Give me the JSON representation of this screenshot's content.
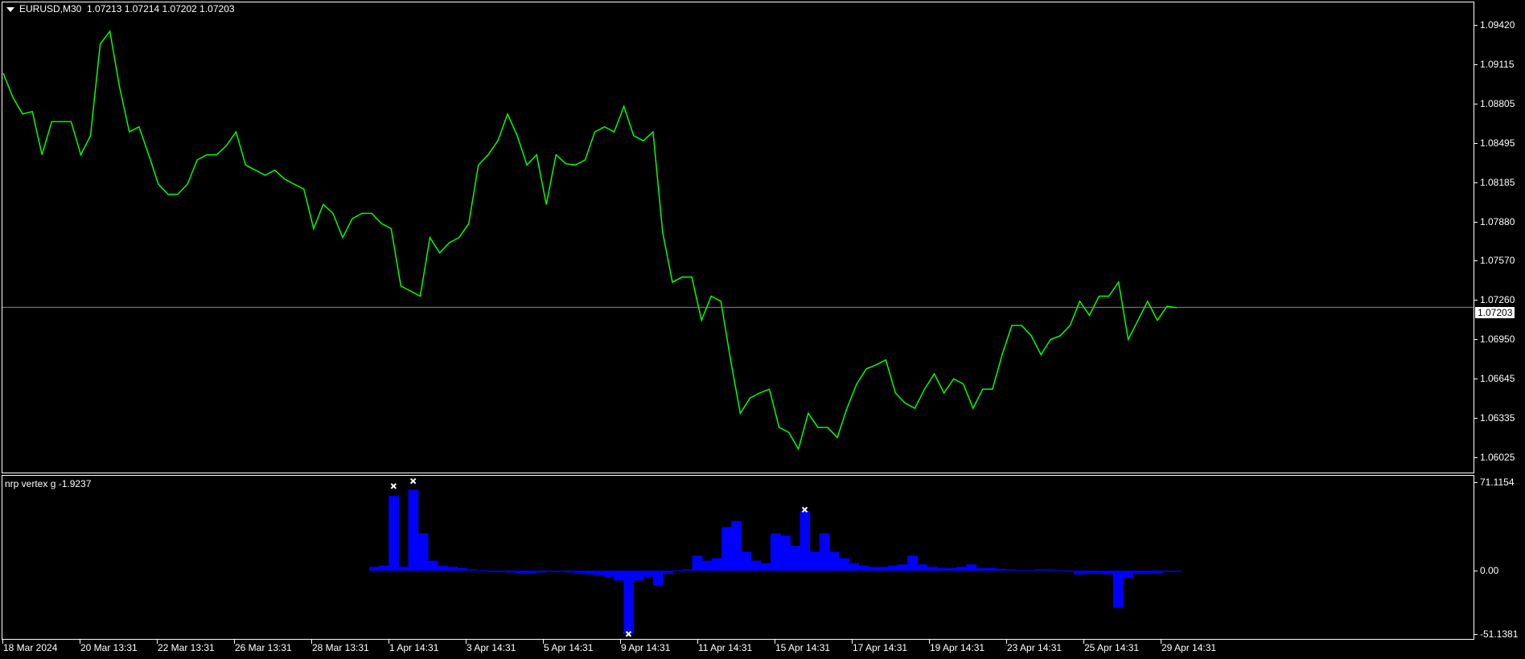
{
  "header": {
    "symbol": "EURUSD,M30",
    "ohlc": "1.07213 1.07214 1.07202 1.07203"
  },
  "indicator": {
    "label": "nrp vertex g -1.9237"
  },
  "colors": {
    "price_line": "#00ff00",
    "histogram": "#0000ff",
    "marker": "#ffffff",
    "current_price_line": "#778899",
    "background": "#000000"
  },
  "price_axis": {
    "ticks": [
      "1.09420",
      "1.09115",
      "1.08805",
      "1.08495",
      "1.08185",
      "1.07880",
      "1.07570",
      "1.07260",
      "1.06950",
      "1.06645",
      "1.06335",
      "1.06025"
    ],
    "current": "1.07203"
  },
  "indicator_axis": {
    "ticks": [
      "71.1154",
      "0.00",
      "-51.1381"
    ]
  },
  "time_axis": {
    "ticks": [
      "18 Mar 2024",
      "20 Mar 13:31",
      "22 Mar 13:31",
      "26 Mar 13:31",
      "28 Mar 13:31",
      "1 Apr 14:31",
      "3 Apr 14:31",
      "5 Apr 14:31",
      "9 Apr 14:31",
      "11 Apr 14:31",
      "15 Apr 14:31",
      "17 Apr 14:31",
      "19 Apr 14:31",
      "23 Apr 14:31",
      "25 Apr 14:31",
      "29 Apr 14:31"
    ]
  },
  "chart_data": [
    {
      "type": "line",
      "series_name": "EURUSD,M30",
      "ylim": [
        1.06025,
        1.0942
      ],
      "current_price": 1.07203,
      "close": [
        1.0904,
        1.0885,
        1.0872,
        1.0874,
        1.084,
        1.0866,
        1.0866,
        1.0866,
        1.084,
        1.0855,
        1.0927,
        1.0937,
        1.0893,
        1.0858,
        1.0862,
        1.084,
        1.0817,
        1.0809,
        1.0809,
        1.0817,
        1.0836,
        1.084,
        1.084,
        1.0847,
        1.0858,
        1.0832,
        1.0828,
        1.0824,
        1.0828,
        1.0821,
        1.0817,
        1.0813,
        1.0782,
        1.0801,
        1.0794,
        1.0775,
        1.079,
        1.0794,
        1.0794,
        1.0786,
        1.0782,
        1.0737,
        1.0733,
        1.0729,
        1.0775,
        1.0763,
        1.0771,
        1.0775,
        1.0786,
        1.0832,
        1.084,
        1.0851,
        1.0872,
        1.0855,
        1.0832,
        1.084,
        1.0801,
        1.084,
        1.0833,
        1.0832,
        1.0836,
        1.0858,
        1.0862,
        1.0858,
        1.0878,
        1.0855,
        1.0851,
        1.0858,
        1.0779,
        1.074,
        1.0744,
        1.0744,
        1.071,
        1.0729,
        1.0725,
        1.0679,
        1.0637,
        1.0649,
        1.0653,
        1.0656,
        1.0626,
        1.0622,
        1.0609,
        1.0637,
        1.0626,
        1.0626,
        1.0618,
        1.0641,
        1.066,
        1.0672,
        1.0675,
        1.0679,
        1.0653,
        1.0645,
        1.0641,
        1.0656,
        1.0668,
        1.0653,
        1.0664,
        1.066,
        1.0641,
        1.0656,
        1.0656,
        1.0683,
        1.0706,
        1.0706,
        1.0698,
        1.0683,
        1.0695,
        1.0698,
        1.0706,
        1.0725,
        1.0714,
        1.0729,
        1.0729,
        1.074,
        1.0695,
        1.071,
        1.0725,
        1.071,
        1.0721,
        1.072
      ]
    },
    {
      "type": "bar",
      "series_name": "nrp vertex g",
      "ylim": [
        -51.1381,
        71.1154
      ],
      "values": [
        3,
        4,
        60,
        3,
        65,
        30,
        8,
        4,
        3,
        2,
        1,
        0.5,
        -1,
        -1,
        -1.5,
        -2,
        -2,
        -1.5,
        -1,
        -1,
        -1.5,
        -2,
        -3,
        -4,
        -5,
        -8,
        -51,
        -8,
        -5,
        -12,
        -2,
        0.5,
        1,
        12,
        8,
        10,
        35,
        40,
        15,
        8,
        6,
        30,
        28,
        20,
        48,
        15,
        30,
        15,
        10,
        6,
        4,
        3,
        3,
        4,
        5,
        12,
        5,
        3,
        2,
        2,
        3,
        5,
        2,
        2,
        1.5,
        1,
        0.5,
        0.3,
        1,
        1,
        0.5,
        -1,
        -3,
        -2,
        -2,
        -3,
        -30,
        -6,
        -2,
        -2,
        -2,
        -1,
        -1
      ],
      "markers": [
        {
          "bar": 2,
          "value": 68
        },
        {
          "bar": 4,
          "value": 72
        },
        {
          "bar": 26,
          "value": -51
        },
        {
          "bar": 44,
          "value": 49
        }
      ]
    }
  ]
}
